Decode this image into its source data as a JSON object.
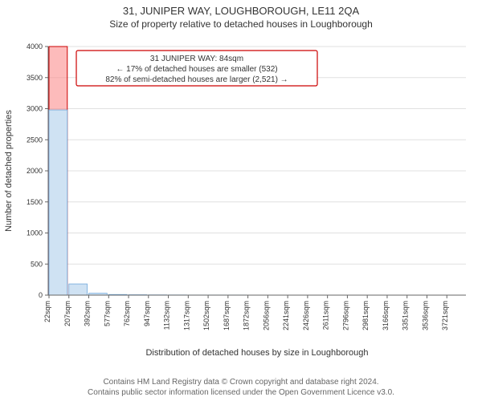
{
  "header": {
    "address": "31, JUNIPER WAY, LOUGHBOROUGH, LE11 2QA",
    "subtitle": "Size of property relative to detached houses in Loughborough",
    "address_fontsize": 13,
    "subtitle_fontsize": 12,
    "color": "#333333"
  },
  "annotation_box": {
    "line1": "31 JUNIPER WAY: 84sqm",
    "line2": "← 17% of detached houses are smaller (532)",
    "line3": "82% of semi-detached houses are larger (2,521) →",
    "border_color": "#cc0000",
    "background_color": "#ffffff",
    "text_color": "#333333",
    "fontsize": 10
  },
  "chart": {
    "type": "histogram",
    "plot_bg": "#ffffff",
    "grid_color": "#e0e0e0",
    "axis_color": "#666666",
    "tick_fontsize": 9,
    "label_fontsize": 11,
    "label_color": "#333333",
    "x_label": "Distribution of detached houses by size in Loughborough",
    "y_label": "Number of detached properties",
    "ylim": [
      0,
      4000
    ],
    "yticks": [
      0,
      500,
      1000,
      1500,
      2000,
      2500,
      3000,
      3500,
      4000
    ],
    "xtick_labels": [
      "22sqm",
      "207sqm",
      "392sqm",
      "577sqm",
      "762sqm",
      "947sqm",
      "1132sqm",
      "1317sqm",
      "1502sqm",
      "1687sqm",
      "1872sqm",
      "2056sqm",
      "2241sqm",
      "2426sqm",
      "2611sqm",
      "2796sqm",
      "2981sqm",
      "3166sqm",
      "3351sqm",
      "3536sqm",
      "3721sqm"
    ],
    "bar_color": "#cfe2f3",
    "bar_border_color": "#6fa8dc",
    "highlight_color": "#fc8d8d",
    "highlight_border_color": "#cc0000",
    "bar_values": [
      2980,
      180,
      30,
      10,
      6,
      4,
      3,
      2,
      2,
      2,
      1,
      1,
      1,
      1,
      1,
      1,
      1,
      1,
      1,
      1,
      1
    ],
    "highlight_bin_x": 84,
    "bin_start": 22,
    "bin_width": 185,
    "bar_gap_ratio": 0.08
  },
  "footer": {
    "line1": "Contains HM Land Registry data © Crown copyright and database right 2024.",
    "line2": "Contains public sector information licensed under the Open Government Licence v3.0.",
    "color": "#666666",
    "fontsize": 10
  }
}
